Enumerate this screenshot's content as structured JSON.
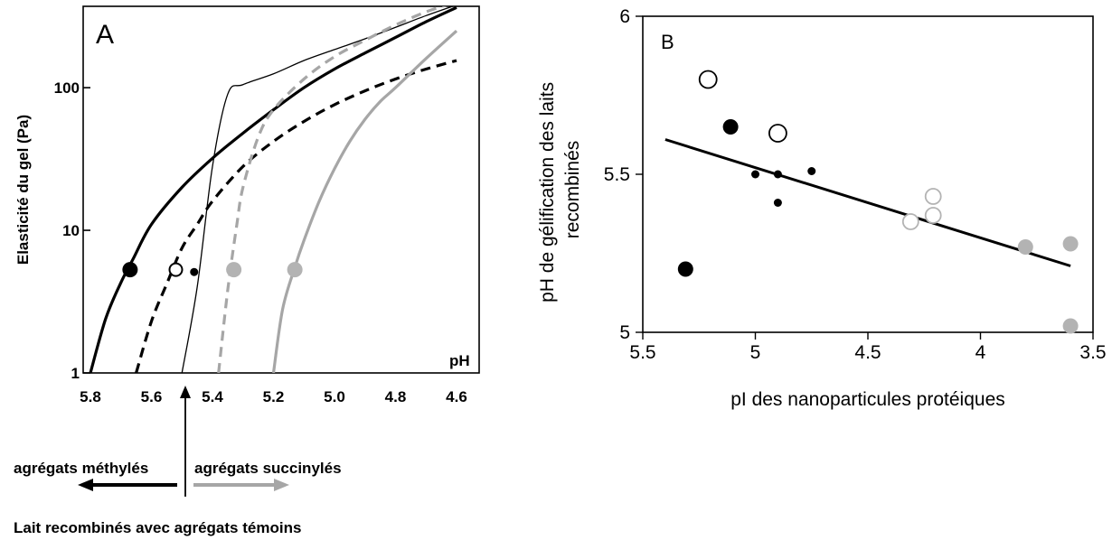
{
  "chart_data": [
    {
      "panel": "A",
      "type": "line",
      "panel_label": "A",
      "xlabel": "pH",
      "ylabel": "Elasticité du gel (Pa)",
      "x_reversed": true,
      "y_scale": "log",
      "xlim": [
        5.8,
        4.6
      ],
      "ylim": [
        1,
        400
      ],
      "xticks": [
        5.8,
        5.6,
        5.4,
        5.2,
        5.0,
        4.8,
        4.6
      ],
      "xtick_labels": [
        "5.8",
        "5.6",
        "5.4",
        "5.2",
        "5.0",
        "4.8",
        "4.6"
      ],
      "yticks": [
        1,
        10,
        100
      ],
      "ytick_labels": [
        "1",
        "10",
        "100"
      ],
      "series": [
        {
          "style": "solid-black-thick",
          "color": "#000000",
          "x": [
            5.8,
            5.75,
            5.7,
            5.66,
            5.6,
            5.5,
            5.4,
            5.3,
            5.2,
            5.1,
            5.0,
            4.9,
            4.8,
            4.7,
            4.6
          ],
          "y": [
            1.0,
            2.4,
            4.3,
            6.3,
            11,
            20,
            32,
            48,
            70,
            100,
            135,
            175,
            225,
            290,
            365
          ]
        },
        {
          "style": "dashed-black-thick",
          "color": "#000000",
          "x": [
            5.65,
            5.6,
            5.55,
            5.5,
            5.45,
            5.4,
            5.3,
            5.2,
            5.1,
            5.0,
            4.9,
            4.8,
            4.7,
            4.6
          ],
          "y": [
            1.0,
            2.3,
            4.2,
            7.5,
            11,
            16,
            28,
            42,
            58,
            76,
            95,
            115,
            135,
            155
          ]
        },
        {
          "style": "solid-black-thin",
          "color": "#000000",
          "x": [
            5.5,
            5.45,
            5.4,
            5.35,
            5.3,
            5.2,
            5.1,
            5.0,
            4.9,
            4.8,
            4.7,
            4.6
          ],
          "y": [
            1.0,
            4.0,
            28,
            90,
            105,
            125,
            155,
            185,
            220,
            265,
            320,
            380
          ]
        },
        {
          "style": "dashed-gray-thick",
          "color": "#a6a6a6",
          "x": [
            5.38,
            5.35,
            5.32,
            5.3,
            5.25,
            5.2,
            5.1,
            5.0,
            4.9,
            4.8,
            4.7,
            4.6
          ],
          "y": [
            1.0,
            3.8,
            11,
            20,
            45,
            70,
            115,
            165,
            215,
            275,
            340,
            400
          ]
        },
        {
          "style": "solid-gray-thick",
          "color": "#a6a6a6",
          "x": [
            5.2,
            5.17,
            5.13,
            5.1,
            5.05,
            5.0,
            4.95,
            4.9,
            4.85,
            4.8,
            4.7,
            4.6
          ],
          "y": [
            1.0,
            2.8,
            5.5,
            8.5,
            16,
            27,
            42,
            60,
            80,
            100,
            160,
            250
          ]
        }
      ],
      "markers": [
        {
          "x": 5.67,
          "y": 5.3,
          "style": "filled-black-large"
        },
        {
          "x": 5.52,
          "y": 5.3,
          "style": "open-black"
        },
        {
          "x": 5.46,
          "y": 5.1,
          "style": "filled-black-small"
        },
        {
          "x": 5.33,
          "y": 5.3,
          "style": "filled-gray"
        },
        {
          "x": 5.13,
          "y": 5.3,
          "style": "filled-gray"
        }
      ],
      "annotations": {
        "methylated": "agrégats méthylés",
        "succinylated": "agrégats succinylés",
        "control": "Lait recombinés avec agrégats témoins"
      }
    },
    {
      "panel": "B",
      "type": "scatter",
      "panel_label": "B",
      "xlabel": "pI des nanoparticules protéiques",
      "ylabel": "pH de gélification des laits recombinés",
      "x_reversed": true,
      "xlim": [
        5.5,
        3.5
      ],
      "ylim": [
        5.0,
        6.0
      ],
      "xticks": [
        5.5,
        5.0,
        4.5,
        4.0,
        3.5
      ],
      "xtick_labels": [
        "5.5",
        "5",
        "4.5",
        "4",
        "3.5"
      ],
      "yticks": [
        5.0,
        5.5,
        6.0
      ],
      "ytick_labels": [
        "5",
        "5.5",
        "6"
      ],
      "points": [
        {
          "x": 5.21,
          "y": 5.8,
          "style": "open-black"
        },
        {
          "x": 4.9,
          "y": 5.63,
          "style": "open-black"
        },
        {
          "x": 5.11,
          "y": 5.65,
          "style": "filled-black-large"
        },
        {
          "x": 5.31,
          "y": 5.2,
          "style": "filled-black-large"
        },
        {
          "x": 5.0,
          "y": 5.5,
          "style": "filled-black-small"
        },
        {
          "x": 4.9,
          "y": 5.5,
          "style": "filled-black-small"
        },
        {
          "x": 4.75,
          "y": 5.51,
          "style": "filled-black-small"
        },
        {
          "x": 4.9,
          "y": 5.41,
          "style": "filled-black-small"
        },
        {
          "x": 4.21,
          "y": 5.43,
          "style": "open-gray"
        },
        {
          "x": 4.21,
          "y": 5.37,
          "style": "open-gray"
        },
        {
          "x": 4.31,
          "y": 5.35,
          "style": "open-gray"
        },
        {
          "x": 3.8,
          "y": 5.27,
          "style": "filled-gray"
        },
        {
          "x": 3.6,
          "y": 5.28,
          "style": "filled-gray"
        },
        {
          "x": 3.6,
          "y": 5.02,
          "style": "filled-gray"
        }
      ],
      "regression": {
        "x": [
          5.4,
          3.6
        ],
        "y": [
          5.61,
          5.21
        ]
      }
    }
  ]
}
